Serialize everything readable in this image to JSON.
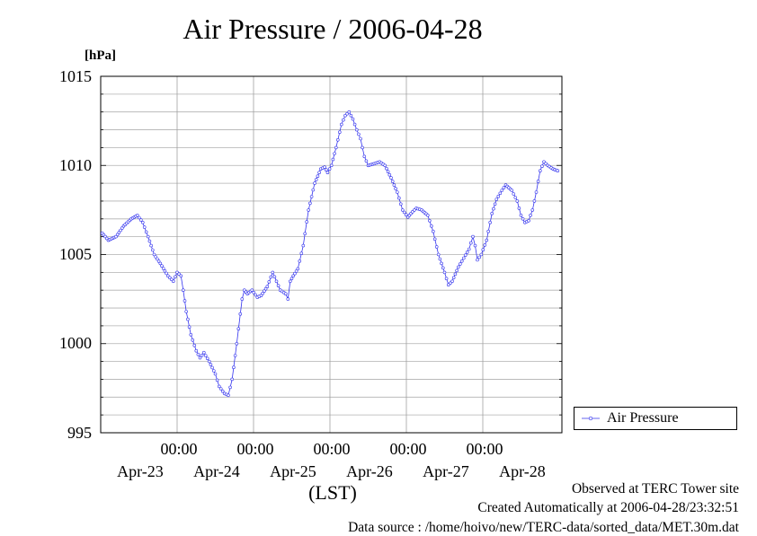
{
  "chart_data": {
    "type": "line",
    "title": "Air Pressure / 2006-04-28",
    "ylabel": "[hPa]",
    "xlabel": "(LST)",
    "ylim": [
      995,
      1015
    ],
    "yticks": [
      "1015",
      "1010",
      "1005",
      "1000",
      "995"
    ],
    "x_time_labels": [
      "00:00",
      "00:00",
      "00:00",
      "00:00",
      "00:00"
    ],
    "x_date_labels": [
      "Apr-23",
      "Apr-24",
      "Apr-25",
      "Apr-26",
      "Apr-27",
      "Apr-28"
    ],
    "grid": true,
    "legend_position": "right",
    "series": [
      {
        "name": "Air Pressure",
        "color": "#3333ee",
        "points": [
          [
            -0.98,
            1006.2
          ],
          [
            -0.9,
            1005.8
          ],
          [
            -0.8,
            1006.0
          ],
          [
            -0.7,
            1006.6
          ],
          [
            -0.6,
            1007.0
          ],
          [
            -0.52,
            1007.2
          ],
          [
            -0.45,
            1006.8
          ],
          [
            -0.38,
            1006.0
          ],
          [
            -0.3,
            1005.0
          ],
          [
            -0.22,
            1004.5
          ],
          [
            -0.12,
            1003.8
          ],
          [
            -0.05,
            1003.5
          ],
          [
            0.0,
            1004.0
          ],
          [
            0.05,
            1003.8
          ],
          [
            0.08,
            1003.0
          ],
          [
            0.12,
            1001.8
          ],
          [
            0.18,
            1000.5
          ],
          [
            0.25,
            999.6
          ],
          [
            0.3,
            999.2
          ],
          [
            0.35,
            999.5
          ],
          [
            0.42,
            999.0
          ],
          [
            0.5,
            998.3
          ],
          [
            0.55,
            997.6
          ],
          [
            0.62,
            997.2
          ],
          [
            0.67,
            997.1
          ],
          [
            0.72,
            998.0
          ],
          [
            0.78,
            1000.0
          ],
          [
            0.85,
            1002.5
          ],
          [
            0.88,
            1003.0
          ],
          [
            0.92,
            1002.8
          ],
          [
            0.98,
            1003.0
          ],
          [
            1.05,
            1002.6
          ],
          [
            1.1,
            1002.7
          ],
          [
            1.18,
            1003.2
          ],
          [
            1.25,
            1004.0
          ],
          [
            1.3,
            1003.5
          ],
          [
            1.35,
            1003.0
          ],
          [
            1.42,
            1002.8
          ],
          [
            1.45,
            1002.5
          ],
          [
            1.48,
            1003.5
          ],
          [
            1.52,
            1003.8
          ],
          [
            1.58,
            1004.2
          ],
          [
            1.65,
            1005.5
          ],
          [
            1.72,
            1007.5
          ],
          [
            1.8,
            1009.0
          ],
          [
            1.88,
            1009.8
          ],
          [
            1.93,
            1009.9
          ],
          [
            1.97,
            1009.6
          ],
          [
            2.02,
            1010.0
          ],
          [
            2.08,
            1011.0
          ],
          [
            2.15,
            1012.3
          ],
          [
            2.2,
            1012.8
          ],
          [
            2.25,
            1013.0
          ],
          [
            2.3,
            1012.6
          ],
          [
            2.35,
            1012.0
          ],
          [
            2.4,
            1011.5
          ],
          [
            2.45,
            1010.5
          ],
          [
            2.5,
            1010.0
          ],
          [
            2.58,
            1010.1
          ],
          [
            2.65,
            1010.2
          ],
          [
            2.72,
            1010.0
          ],
          [
            2.8,
            1009.3
          ],
          [
            2.88,
            1008.5
          ],
          [
            2.95,
            1007.5
          ],
          [
            3.02,
            1007.1
          ],
          [
            3.08,
            1007.4
          ],
          [
            3.13,
            1007.6
          ],
          [
            3.2,
            1007.5
          ],
          [
            3.28,
            1007.2
          ],
          [
            3.35,
            1006.3
          ],
          [
            3.42,
            1005.0
          ],
          [
            3.5,
            1004.0
          ],
          [
            3.55,
            1003.3
          ],
          [
            3.6,
            1003.5
          ],
          [
            3.68,
            1004.3
          ],
          [
            3.75,
            1004.8
          ],
          [
            3.82,
            1005.3
          ],
          [
            3.87,
            1006.0
          ],
          [
            3.9,
            1005.5
          ],
          [
            3.93,
            1004.7
          ],
          [
            3.98,
            1005.0
          ],
          [
            4.05,
            1005.8
          ],
          [
            4.12,
            1007.3
          ],
          [
            4.18,
            1008.1
          ],
          [
            4.25,
            1008.6
          ],
          [
            4.3,
            1008.9
          ],
          [
            4.38,
            1008.6
          ],
          [
            4.45,
            1008.0
          ],
          [
            4.5,
            1007.2
          ],
          [
            4.55,
            1006.8
          ],
          [
            4.6,
            1006.9
          ],
          [
            4.65,
            1007.5
          ],
          [
            4.7,
            1008.5
          ],
          [
            4.75,
            1009.7
          ],
          [
            4.8,
            1010.2
          ],
          [
            4.85,
            1010.0
          ],
          [
            4.92,
            1009.8
          ],
          [
            4.98,
            1009.7
          ]
        ]
      }
    ]
  },
  "footer": {
    "observed": "Observed at TERC Tower site",
    "created": "Created Automatically at 2006-04-28/23:32:51",
    "source": "Data source : /home/hoivo/new/TERC-data/sorted_data/MET.30m.dat"
  }
}
